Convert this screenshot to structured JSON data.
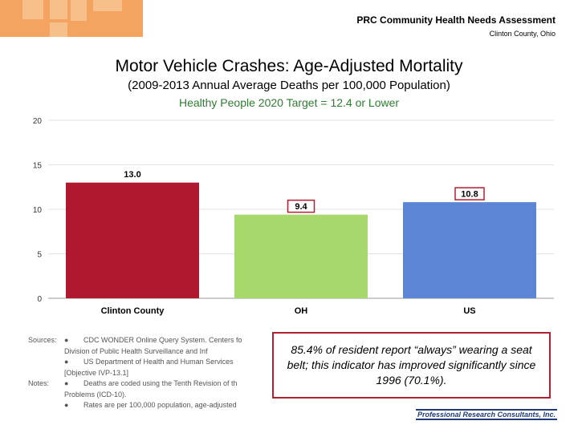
{
  "header": {
    "title": "PRC Community Health Needs Assessment",
    "subtitle": "Clinton County, Ohio"
  },
  "brand": {
    "logo_color": "#f4a460",
    "logo_tile_color": "#f7c08a"
  },
  "chart_data": {
    "type": "bar",
    "title": "Motor Vehicle Crashes: Age-Adjusted Mortality",
    "subtitle": "(2009-2013 Annual Average Deaths per 100,000 Population)",
    "target_label": "Healthy People 2020 Target = 12.4 or Lower",
    "categories": [
      "Clinton County",
      "OH",
      "US"
    ],
    "values": [
      13.0,
      9.4,
      10.8
    ],
    "value_labels": [
      "13.0",
      "9.4",
      "10.8"
    ],
    "colors": [
      "#b01830",
      "#a6d86c",
      "#5b86d6"
    ],
    "ylim": [
      0,
      20
    ],
    "yticks": [
      0,
      5,
      10,
      15,
      20
    ],
    "xlabel": "",
    "ylabel": "",
    "grid": true
  },
  "notes": {
    "sources_label": "Sources:",
    "sources_items": [
      "CDC WONDER Online Query System. Centers fo",
      "Division of Public Health Surveillance and Inf",
      "US Department of Health and Human Services",
      "[Objective IVP-13.1]"
    ],
    "notes_label": "Notes:",
    "notes_items": [
      "Deaths are coded using the Tenth Revision of th",
      "Problems (ICD-10).",
      "Rates are per 100,000 population, age-adjusted"
    ]
  },
  "callout": {
    "text": "85.4% of resident report “always” wearing a seat belt; this indicator has improved significantly since 1996 (70.1%)."
  },
  "footer": {
    "brand": "Professional Research Consultants, Inc."
  }
}
